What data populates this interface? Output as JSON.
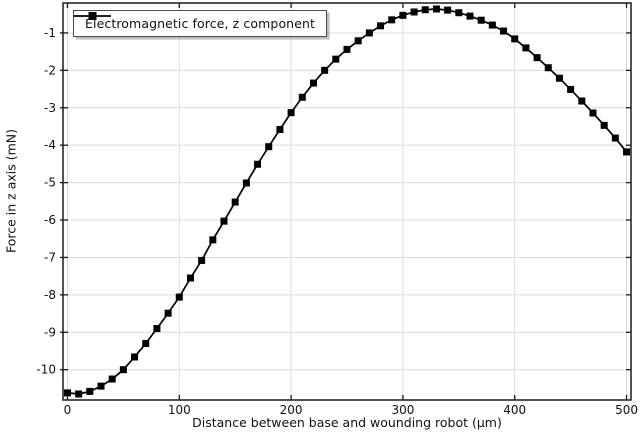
{
  "colors": {
    "background": "#ffffff",
    "axis": "#1a1a1a",
    "grid": "#dcdcdc",
    "series": "#000000",
    "text": "#111111"
  },
  "chart_data": {
    "type": "line",
    "title": "",
    "xlabel": "Distance between base and wounding robot (μm)",
    "ylabel": "Force in z axis (mN)",
    "xlim": [
      -4,
      504
    ],
    "ylim": [
      -10.81,
      -0.2
    ],
    "x_ticks": [
      0,
      100,
      200,
      300,
      400,
      500
    ],
    "y_ticks": [
      -1,
      -2,
      -3,
      -4,
      -5,
      -6,
      -7,
      -8,
      -9,
      -10
    ],
    "grid": true,
    "legend_position": "top-left",
    "series": [
      {
        "name": "Electromagnetic force, z component",
        "color": "#000000",
        "marker": "square",
        "x": [
          0,
          10,
          20,
          30,
          40,
          50,
          60,
          70,
          80,
          90,
          100,
          110,
          120,
          130,
          140,
          150,
          160,
          170,
          180,
          190,
          200,
          210,
          220,
          230,
          240,
          250,
          260,
          270,
          280,
          290,
          300,
          310,
          320,
          330,
          340,
          350,
          360,
          370,
          380,
          390,
          400,
          410,
          420,
          430,
          440,
          450,
          460,
          470,
          480,
          490,
          500
        ],
        "values": [
          -10.62,
          -10.65,
          -10.58,
          -10.44,
          -10.25,
          -10.0,
          -9.66,
          -9.3,
          -8.9,
          -8.49,
          -8.06,
          -7.55,
          -7.08,
          -6.53,
          -6.03,
          -5.52,
          -5.01,
          -4.51,
          -4.04,
          -3.58,
          -3.13,
          -2.72,
          -2.34,
          -2.0,
          -1.7,
          -1.44,
          -1.21,
          -1.0,
          -0.81,
          -0.65,
          -0.53,
          -0.44,
          -0.38,
          -0.36,
          -0.39,
          -0.46,
          -0.55,
          -0.66,
          -0.79,
          -0.95,
          -1.16,
          -1.4,
          -1.66,
          -1.93,
          -2.21,
          -2.51,
          -2.82,
          -3.14,
          -3.47,
          -3.81,
          -4.18
        ]
      }
    ]
  }
}
